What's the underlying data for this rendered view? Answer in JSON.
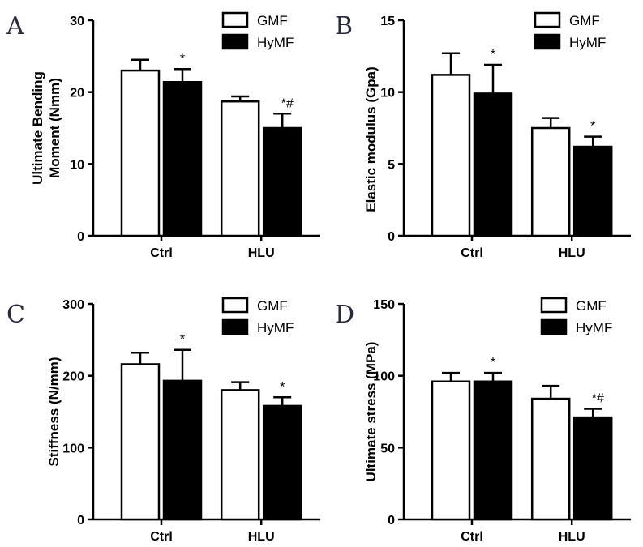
{
  "chart_data": [
    {
      "type": "bar",
      "panel": "A",
      "categories": [
        "Ctrl",
        "HLU"
      ],
      "series": [
        {
          "name": "GMF",
          "values": [
            23.0,
            18.7
          ],
          "errors": [
            1.5,
            0.7
          ],
          "color": "#ffffff"
        },
        {
          "name": "HyMF",
          "values": [
            21.4,
            15.0
          ],
          "errors": [
            1.8,
            2.0
          ],
          "color": "#000000"
        }
      ],
      "annotations": [
        [
          "",
          "*"
        ],
        [
          "",
          "*#"
        ]
      ],
      "ylabel": "Ultimate Bending Moment (Nmm)",
      "ylabel_lines": [
        "Ultimate Bending",
        "Moment (Nmm)"
      ],
      "ylim": [
        0,
        30
      ],
      "yticks": [
        0,
        10,
        20,
        30
      ],
      "ytick_labels": [
        "0",
        "10",
        "20",
        "30"
      ],
      "legend": "top-right"
    },
    {
      "type": "bar",
      "panel": "B",
      "categories": [
        "Ctrl",
        "HLU"
      ],
      "series": [
        {
          "name": "GMF",
          "values": [
            11.2,
            7.5
          ],
          "errors": [
            1.5,
            0.7
          ],
          "color": "#ffffff"
        },
        {
          "name": "HyMF",
          "values": [
            9.9,
            6.2
          ],
          "errors": [
            2.0,
            0.7
          ],
          "color": "#000000"
        }
      ],
      "annotations": [
        [
          "",
          "*"
        ],
        [
          "",
          "*"
        ]
      ],
      "ylabel": "Elastic modulus (Gpa)",
      "ylabel_lines": [
        "Elastic modulus (Gpa)"
      ],
      "ylim": [
        0,
        15
      ],
      "yticks": [
        0,
        5,
        10,
        15
      ],
      "ytick_labels": [
        "0",
        "5",
        "10",
        "15"
      ],
      "legend": "top-right"
    },
    {
      "type": "bar",
      "panel": "C",
      "categories": [
        "Ctrl",
        "HLU"
      ],
      "series": [
        {
          "name": "GMF",
          "values": [
            216,
            180
          ],
          "errors": [
            16,
            11
          ],
          "color": "#ffffff"
        },
        {
          "name": "HyMF",
          "values": [
            193,
            158
          ],
          "errors": [
            43,
            12
          ],
          "color": "#000000"
        }
      ],
      "annotations": [
        [
          "",
          "*"
        ],
        [
          "",
          "*"
        ]
      ],
      "ylabel": "Stiffness (N/mm)",
      "ylabel_lines": [
        "Stiffness (N/mm)"
      ],
      "ylim": [
        0,
        300
      ],
      "yticks": [
        0,
        100,
        200,
        300
      ],
      "ytick_labels": [
        "0",
        "100",
        "200",
        "300"
      ],
      "legend": "top-right"
    },
    {
      "type": "bar",
      "panel": "D",
      "categories": [
        "Ctrl",
        "HLU"
      ],
      "series": [
        {
          "name": "GMF",
          "values": [
            96,
            84
          ],
          "errors": [
            6,
            9
          ],
          "color": "#ffffff"
        },
        {
          "name": "HyMF",
          "values": [
            96,
            71
          ],
          "errors": [
            6,
            6
          ],
          "color": "#000000"
        }
      ],
      "annotations": [
        [
          "",
          "*"
        ],
        [
          "",
          "*#"
        ]
      ],
      "ylabel": "Ultimate stress (MPa)",
      "ylabel_lines": [
        "Ultimate stress (MPa)"
      ],
      "ylim": [
        0,
        150
      ],
      "yticks": [
        0,
        50,
        100,
        150
      ],
      "ytick_labels": [
        "0",
        "50",
        "100",
        "150"
      ],
      "legend": "top-right"
    }
  ]
}
